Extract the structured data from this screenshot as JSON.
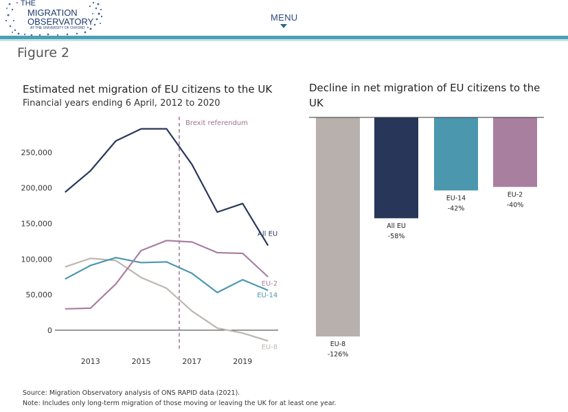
{
  "header": {
    "logo_line1": "THE",
    "logo_line2": "MIGRATION",
    "logo_line3": "OBSERVATORY",
    "logo_line4": "AT THE UNIVERSITY OF OXFORD",
    "menu_label": "MENU"
  },
  "figure_label": "Figure 2",
  "chart_data": [
    {
      "type": "line",
      "title": "Estimated net migration of EU citizens to the UK",
      "subtitle": "Financial years ending 6 April, 2012 to 2020",
      "x": [
        2012,
        2013,
        2014,
        2015,
        2016,
        2017,
        2018,
        2019,
        2020
      ],
      "x_tick_labels": [
        "2013",
        "2015",
        "2017",
        "2019"
      ],
      "x_ticks": [
        2013,
        2015,
        2017,
        2019
      ],
      "y_tick_labels": [
        "0",
        "50,000",
        "100,000",
        "150,000",
        "200,000",
        "250,000"
      ],
      "y_ticks": [
        0,
        50000,
        100000,
        150000,
        200000,
        250000
      ],
      "ylim": [
        -30000,
        300000
      ],
      "xlim": [
        2011.6,
        2020.4
      ],
      "annotation": {
        "label": "Brexit referendum",
        "x": 2016.5,
        "color": "#a3728f"
      },
      "series": [
        {
          "name": "All EU",
          "color": "#28365a",
          "values": [
            194000,
            224000,
            266000,
            283000,
            283000,
            233000,
            166000,
            178000,
            119000
          ]
        },
        {
          "name": "EU-2",
          "color": "#a97fa0",
          "values": [
            30000,
            31000,
            65000,
            112000,
            126000,
            124000,
            109000,
            108000,
            75000
          ]
        },
        {
          "name": "EU-14",
          "color": "#4a97ae",
          "values": [
            72000,
            91000,
            102000,
            95000,
            96000,
            80000,
            53000,
            71000,
            56000
          ]
        },
        {
          "name": "EU-8",
          "color": "#bdb6b0",
          "values": [
            89000,
            101000,
            98000,
            74000,
            59000,
            27000,
            3000,
            -4000,
            -15000
          ]
        }
      ]
    },
    {
      "type": "bar",
      "title": "Decline in net migration of EU citizens to the UK",
      "categories": [
        "EU-8",
        "All EU",
        "EU-14",
        "EU-2"
      ],
      "values": [
        -126,
        -58,
        -42,
        -40
      ],
      "value_labels": [
        "-126%",
        "-58%",
        "-42%",
        "-40%"
      ],
      "colors": [
        "#b8b0ac",
        "#28365a",
        "#4a97ae",
        "#a97fa0"
      ],
      "ylim": [
        -126,
        0
      ]
    }
  ],
  "footer": {
    "source": "Source: Migration Observatory analysis of ONS RAPID data (2021).",
    "note": "Note: Includes only long-term migration of those moving or leaving the UK for at least one year."
  }
}
